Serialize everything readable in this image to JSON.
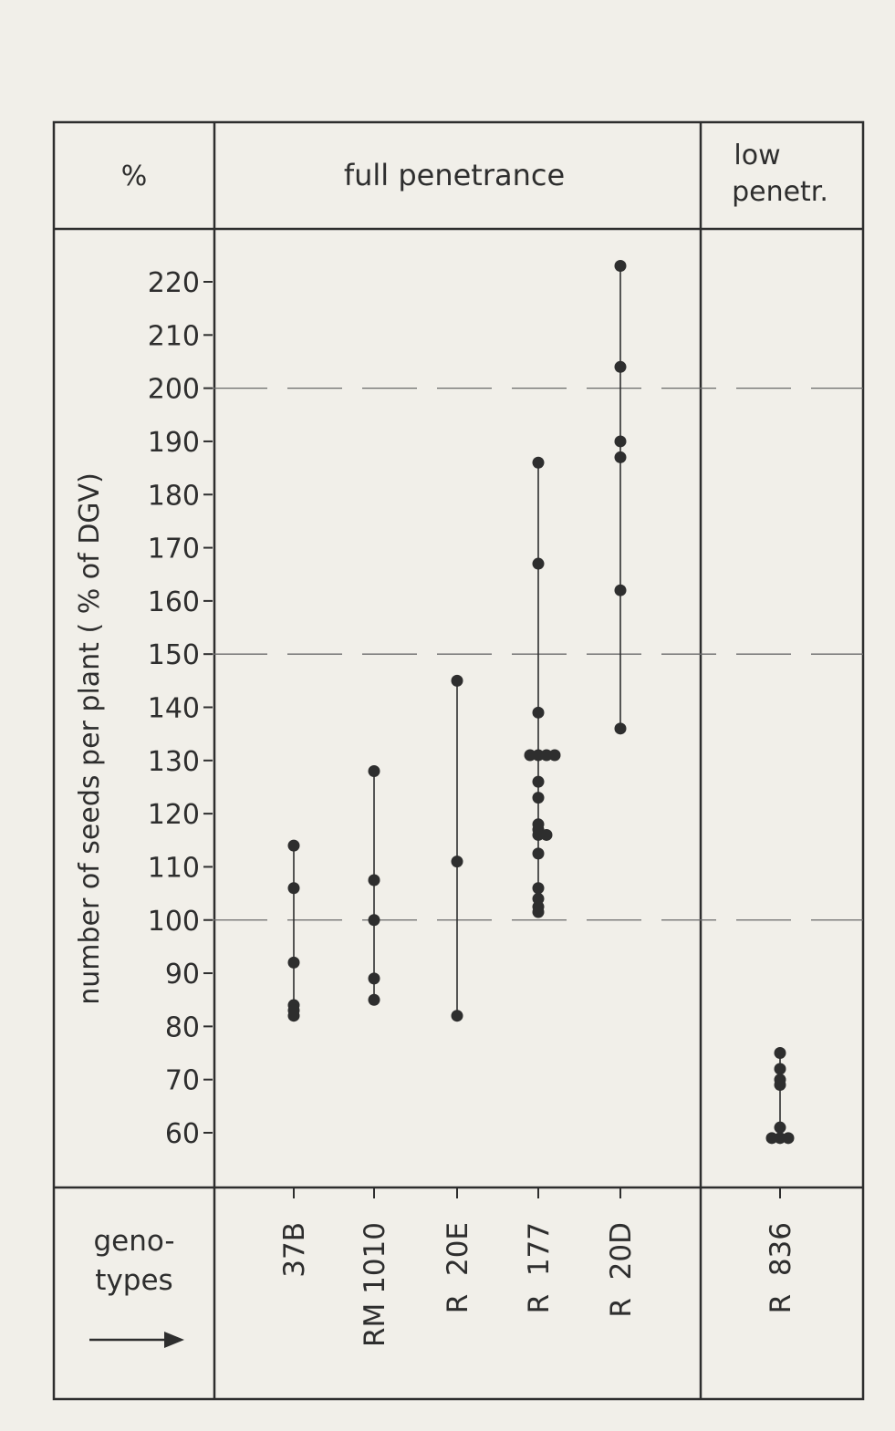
{
  "header": {
    "percent": "%",
    "full_penetrance": "full penetrance",
    "low_line1": "low",
    "low_line2": "penetr."
  },
  "genotypes_label": {
    "line1": "geno-",
    "line2": "types",
    "arrow_icon": "right-arrow-icon"
  },
  "chart_data": {
    "type": "scatter",
    "ylabel": "number of seeds per plant  ( % of DGV)",
    "ylim": [
      55,
      225
    ],
    "yticks": [
      60,
      70,
      80,
      90,
      100,
      110,
      120,
      130,
      140,
      150,
      160,
      170,
      180,
      190,
      200,
      210,
      220
    ],
    "reference_lines": [
      100,
      150,
      200
    ],
    "grid": false,
    "groups": [
      {
        "genotype": "37B",
        "section": "full",
        "values": [
          114,
          106,
          92,
          84,
          83,
          82
        ]
      },
      {
        "genotype": "RM 1010",
        "section": "full",
        "values": [
          128,
          107.5,
          100,
          89,
          85
        ]
      },
      {
        "genotype": "R  20E",
        "section": "full",
        "values": [
          145,
          111,
          82
        ]
      },
      {
        "genotype": "R  177",
        "section": "full",
        "values": [
          186,
          167,
          139,
          131,
          131,
          131,
          131,
          126,
          123,
          118,
          117,
          116,
          116,
          112.5,
          106,
          104,
          102.5,
          101.5
        ]
      },
      {
        "genotype": "R  20D",
        "section": "full",
        "values": [
          223,
          204,
          190,
          187,
          162,
          136
        ]
      },
      {
        "genotype": "R  836",
        "section": "low",
        "values": [
          75,
          72,
          70,
          69,
          61,
          59,
          59,
          59
        ]
      }
    ]
  },
  "colors": {
    "ink": "#2e2e2e",
    "paper": "#f1efe9"
  }
}
